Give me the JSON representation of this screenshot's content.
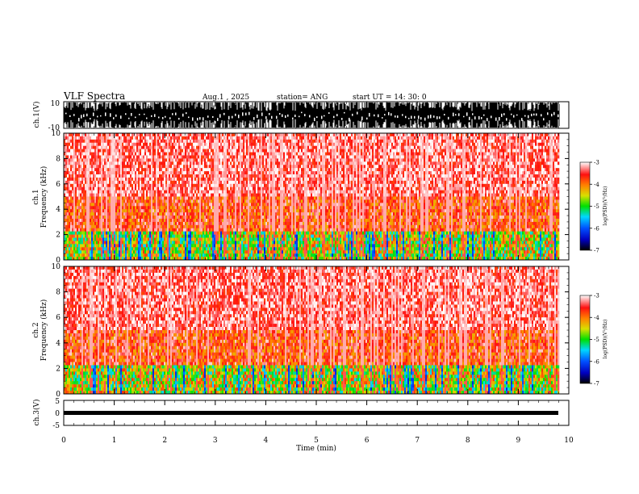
{
  "header": {
    "title": "VLF Spectra",
    "date": "Aug.1 , 2025",
    "station": "station= ANG",
    "start": "start UT = 14: 30: 0"
  },
  "panels": {
    "ch1_wave_label": "ch.1(V)",
    "ch1_spec_label": "ch.1\nFrequency (kHz)",
    "ch2_spec_label": "ch.2\nFrequency (kHz)",
    "ch3_wave_label": "ch.3(V)",
    "colorbar_label": "log(PSD)(V²/Hz)"
  },
  "chart_data": [
    {
      "type": "line",
      "name": "ch1-waveform",
      "ylabel": "ch.1(V)",
      "ylim": [
        -10,
        10
      ],
      "yticks": [
        "10",
        "-10"
      ],
      "xlim": [
        0,
        10
      ],
      "x_end": 9.82
    },
    {
      "type": "heatmap",
      "name": "ch1-spectrogram",
      "ylabel": "ch.1 Frequency (kHz)",
      "ylim": [
        0,
        10
      ],
      "yticks": [
        "0",
        "2",
        "4",
        "6",
        "8",
        "10"
      ],
      "xlim": [
        0,
        10
      ],
      "x_end": 9.82,
      "colorbar": {
        "label": "log(PSD)(V²/Hz)",
        "range": [
          -7,
          -3
        ],
        "ticks": [
          "-3",
          "-4",
          "-5",
          "-6",
          "-7"
        ]
      }
    },
    {
      "type": "heatmap",
      "name": "ch2-spectrogram",
      "ylabel": "ch.2 Frequency (kHz)",
      "ylim": [
        0,
        10
      ],
      "yticks": [
        "0",
        "2",
        "4",
        "6",
        "8",
        "10"
      ],
      "xlim": [
        0,
        10
      ],
      "x_end": 9.82,
      "colorbar": {
        "label": "log(PSD)(V²/Hz)",
        "range": [
          -7,
          -3
        ],
        "ticks": [
          "-3",
          "-4",
          "-5",
          "-6",
          "-7"
        ]
      }
    },
    {
      "type": "line",
      "name": "ch3-waveform",
      "ylabel": "ch.3(V)",
      "ylim": [
        -5,
        5
      ],
      "yticks": [
        "5",
        "0",
        "-5"
      ],
      "xlim": [
        0,
        10
      ],
      "x_end": 9.82,
      "xlabel": "Time (min)",
      "xticks": [
        "0",
        "1",
        "2",
        "3",
        "4",
        "5",
        "6",
        "7",
        "8",
        "9",
        "10"
      ]
    }
  ]
}
